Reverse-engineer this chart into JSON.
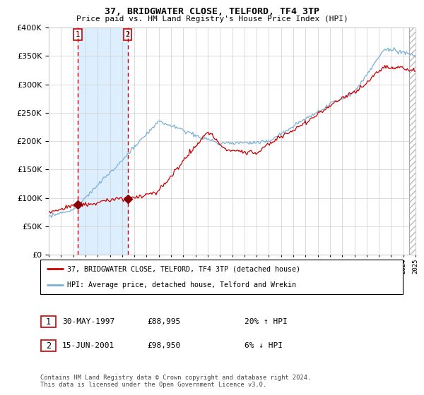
{
  "title": "37, BRIDGWATER CLOSE, TELFORD, TF4 3TP",
  "subtitle": "Price paid vs. HM Land Registry's House Price Index (HPI)",
  "legend_label_red": "37, BRIDGWATER CLOSE, TELFORD, TF4 3TP (detached house)",
  "legend_label_blue": "HPI: Average price, detached house, Telford and Wrekin",
  "transaction1_date": "30-MAY-1997",
  "transaction1_price": 88995,
  "transaction1_hpi": "20% ↑ HPI",
  "transaction2_date": "15-JUN-2001",
  "transaction2_price": 98950,
  "transaction2_hpi": "6% ↓ HPI",
  "transaction1_year": 1997.37,
  "transaction2_year": 2001.45,
  "footer": "Contains HM Land Registry data © Crown copyright and database right 2024.\nThis data is licensed under the Open Government Licence v3.0.",
  "xmin": 1995.0,
  "xmax": 2025.0,
  "ymin": 0,
  "ymax": 400000,
  "red_color": "#cc0000",
  "blue_color": "#7ab0d4",
  "background_color": "#ffffff",
  "grid_color": "#cccccc",
  "hatch_color": "#bbbbbb",
  "shade_color": "#ddeeff",
  "hatch_start": 2024.5
}
